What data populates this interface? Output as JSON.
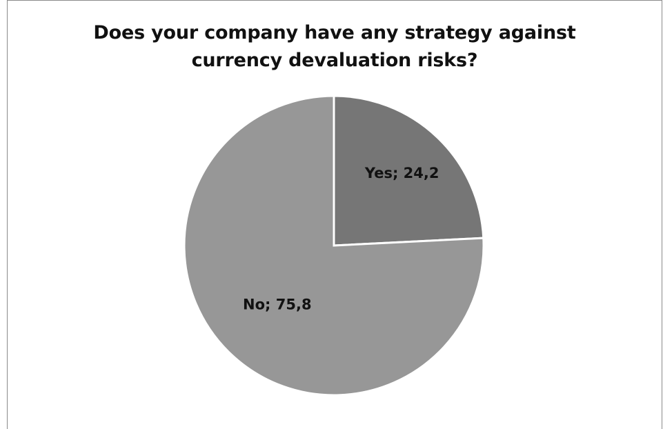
{
  "chart_data": {
    "type": "pie",
    "title_lines": [
      "Does your company have any strategy against",
      "currency devaluation risks?"
    ],
    "slices": [
      {
        "label": "Yes",
        "value": 24.2,
        "label_text": "Yes; 24,2",
        "color": "#767676"
      },
      {
        "label": "No",
        "value": 75.8,
        "label_text": "No; 75,8",
        "color": "#979797"
      }
    ],
    "start": "12 o'clock",
    "direction": "clockwise",
    "slice_border_color": "#ffffff",
    "legend": "none"
  }
}
